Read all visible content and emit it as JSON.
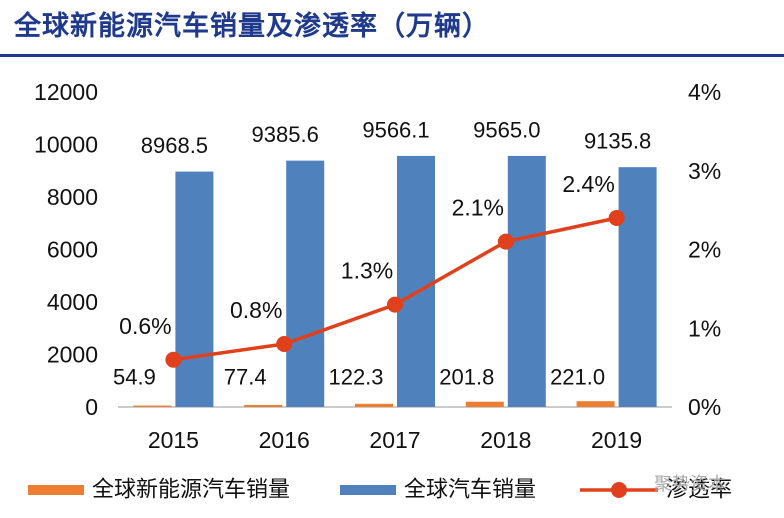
{
  "title": "全球新能源汽车销量及渗透率（万辆）",
  "watermark": "聚势资本",
  "colors": {
    "title": "#1f3a8c",
    "nev_bar": "#ed7d31",
    "total_bar": "#4f81bd",
    "rate_line": "#e0401c"
  },
  "chart_data": {
    "type": "bar",
    "categories": [
      "2015",
      "2016",
      "2017",
      "2018",
      "2019"
    ],
    "series": [
      {
        "name": "全球新能源汽车销量",
        "kind": "bar",
        "axis": "left",
        "values": [
          54.9,
          77.4,
          122.3,
          201.8,
          221.0
        ],
        "labels": [
          "54.9",
          "77.4",
          "122.3",
          "201.8",
          "221.0"
        ]
      },
      {
        "name": "全球汽车销量",
        "kind": "bar",
        "axis": "left",
        "values": [
          8968.5,
          9385.6,
          9566.1,
          9565.0,
          9135.8
        ],
        "labels": [
          "8968.5",
          "9385.6",
          "9566.1",
          "9565.0",
          "9135.8"
        ]
      },
      {
        "name": "渗透率",
        "kind": "line",
        "axis": "right",
        "values": [
          0.6,
          0.8,
          1.3,
          2.1,
          2.4
        ],
        "labels": [
          "0.6%",
          "0.8%",
          "1.3%",
          "2.1%",
          "2.4%"
        ]
      }
    ],
    "y_left": {
      "min": 0,
      "max": 12000,
      "ticks": [
        "0",
        "2000",
        "4000",
        "6000",
        "8000",
        "10000",
        "12000"
      ]
    },
    "y_right": {
      "min": 0,
      "max": 4,
      "ticks": [
        "0%",
        "1%",
        "2%",
        "3%",
        "4%"
      ]
    },
    "grid": false,
    "legend": "bottom"
  }
}
